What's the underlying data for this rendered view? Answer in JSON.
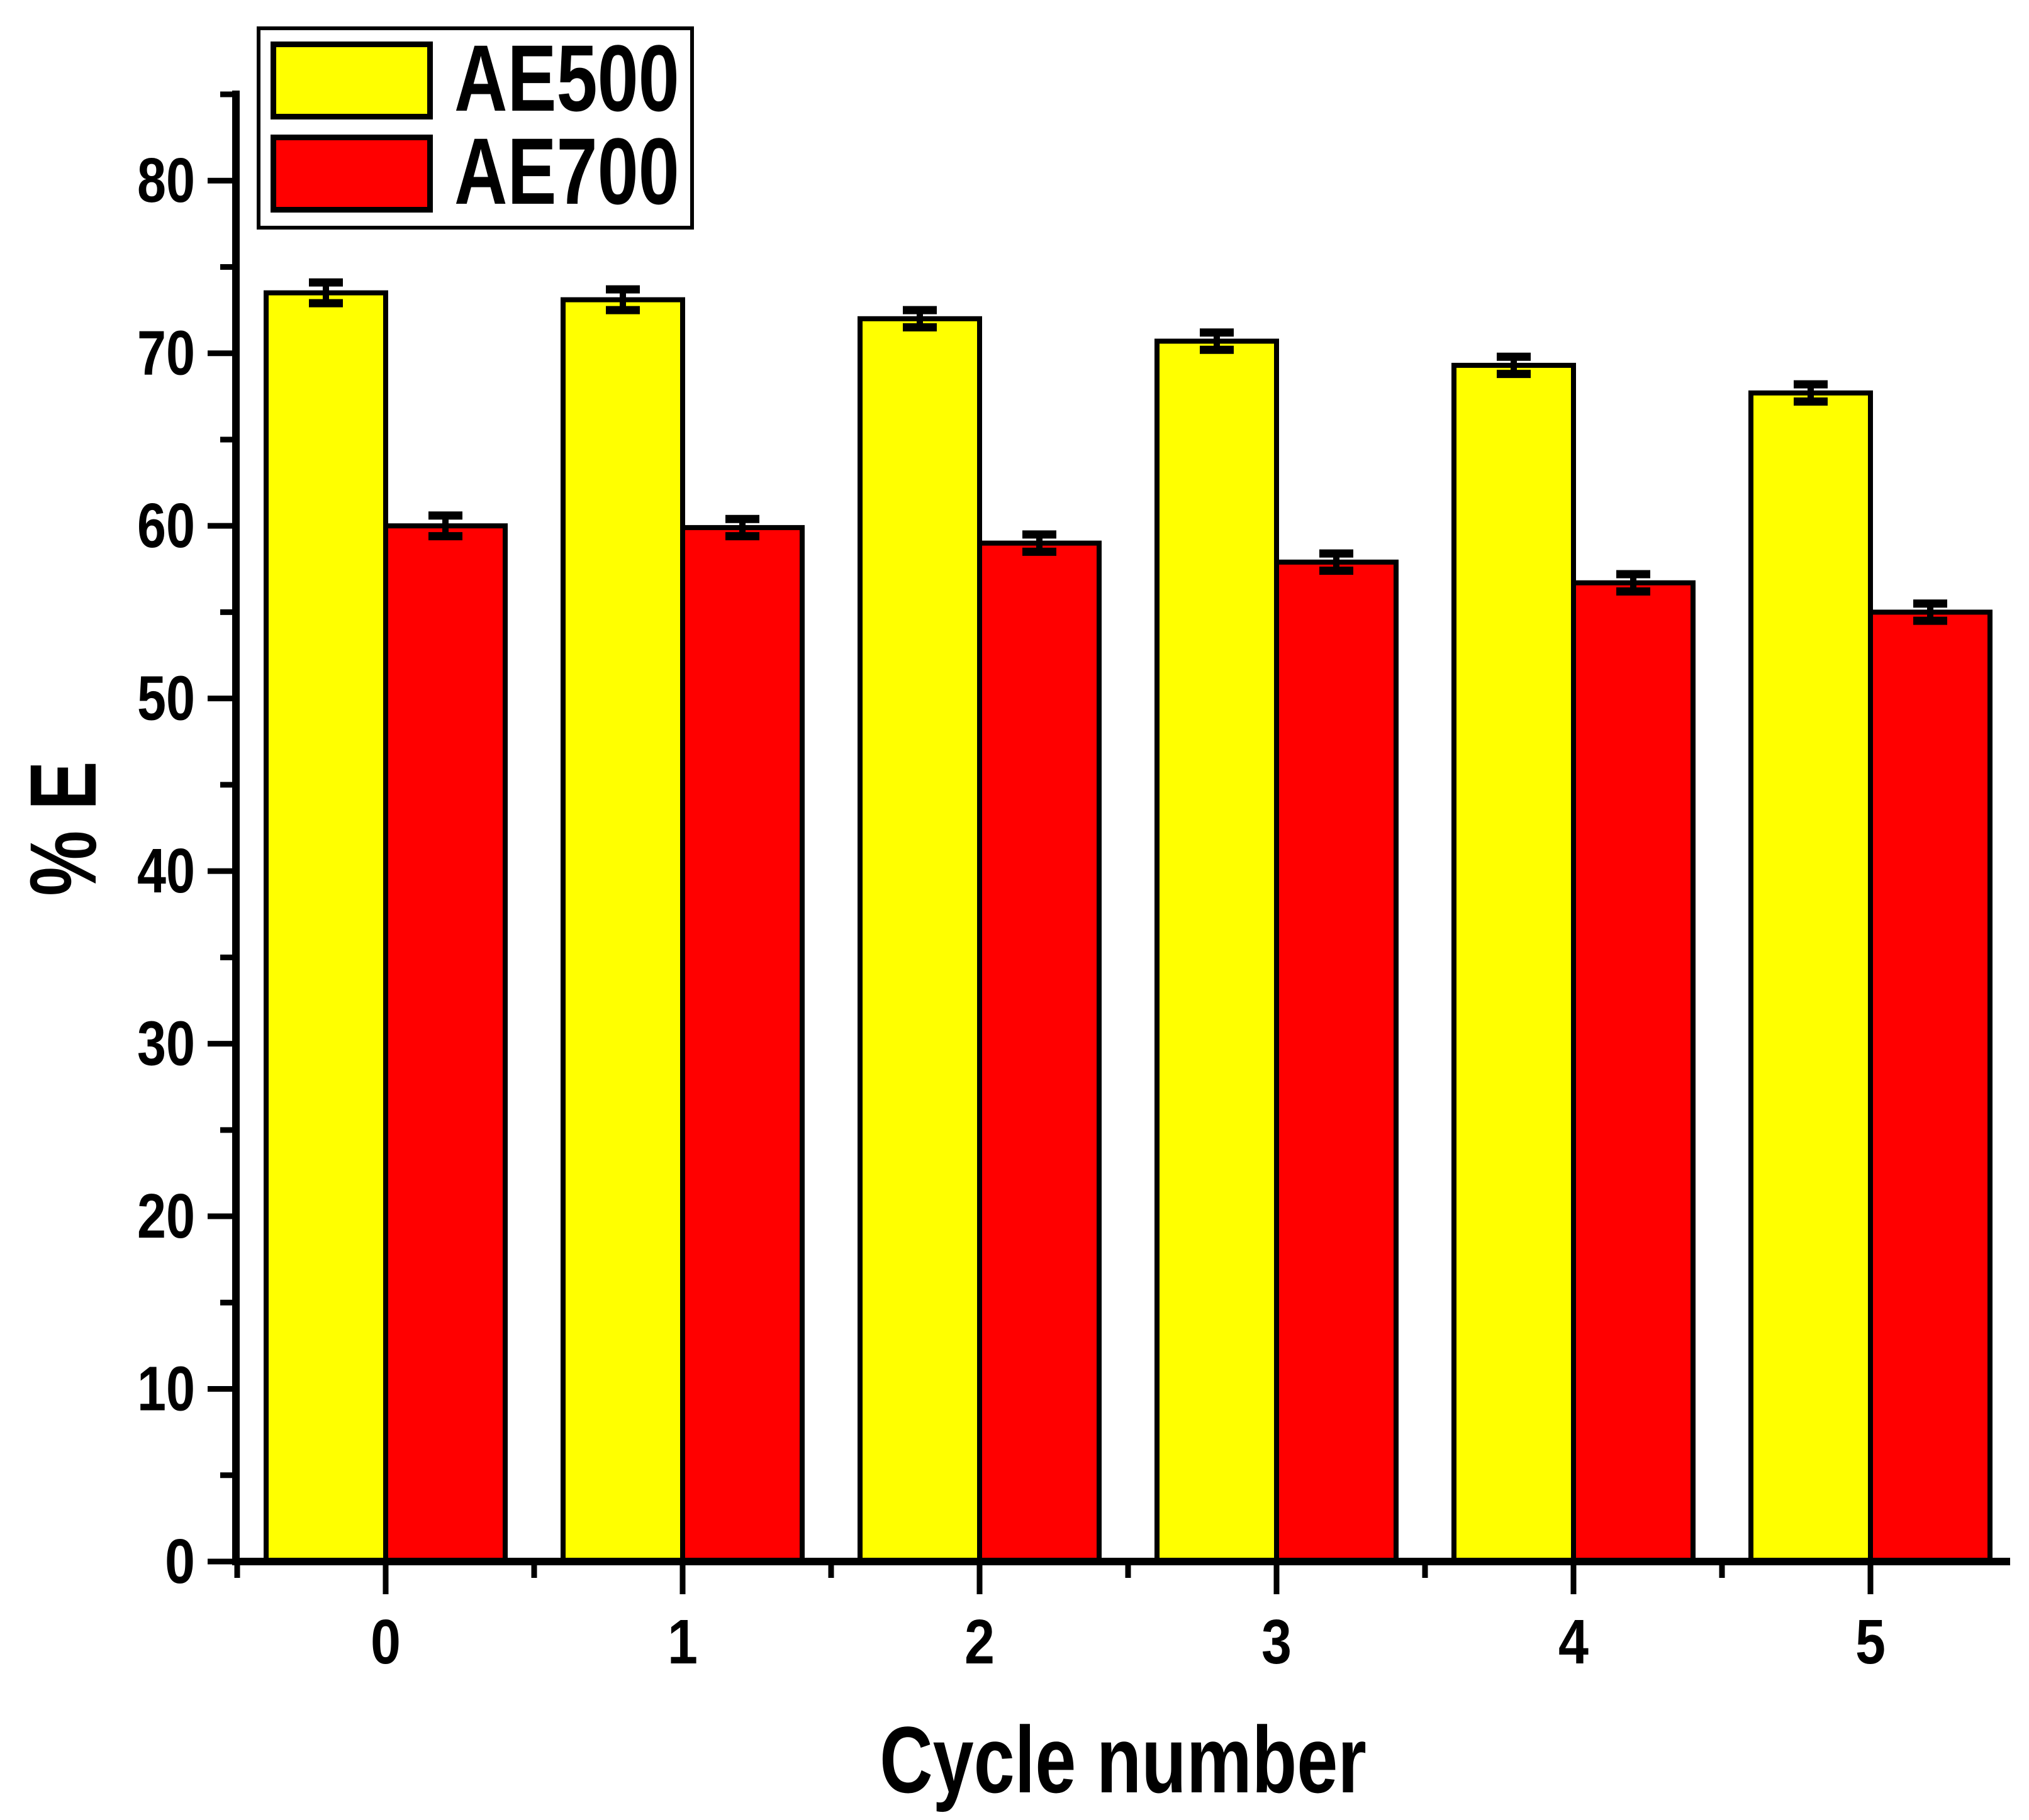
{
  "chart_data": {
    "type": "bar",
    "title": "",
    "xlabel": "Cycle number",
    "ylabel": "% E",
    "categories": [
      "0",
      "1",
      "2",
      "3",
      "4",
      "5"
    ],
    "series": [
      {
        "name": "AE500",
        "color": "#ffff00",
        "values": [
          73.5,
          73.1,
          72.0,
          70.7,
          69.3,
          67.7
        ],
        "errors": [
          0.6,
          0.6,
          0.5,
          0.5,
          0.5,
          0.5
        ]
      },
      {
        "name": "AE700",
        "color": "#ff0000",
        "values": [
          60.0,
          59.9,
          59.0,
          57.9,
          56.7,
          55.0
        ],
        "errors": [
          0.6,
          0.5,
          0.5,
          0.5,
          0.5,
          0.5
        ]
      }
    ],
    "ylim": [
      0,
      85
    ],
    "y_major_ticks": [
      0,
      10,
      20,
      30,
      40,
      50,
      60,
      70,
      80
    ],
    "y_minor_step": 5,
    "x_minor_at_half_positions": true,
    "grid": false,
    "legend_position": "top-left",
    "error_bars": "both-caps",
    "bar_outline_color": "#000000",
    "axis_color": "#000000",
    "background_color": "#ffffff"
  }
}
